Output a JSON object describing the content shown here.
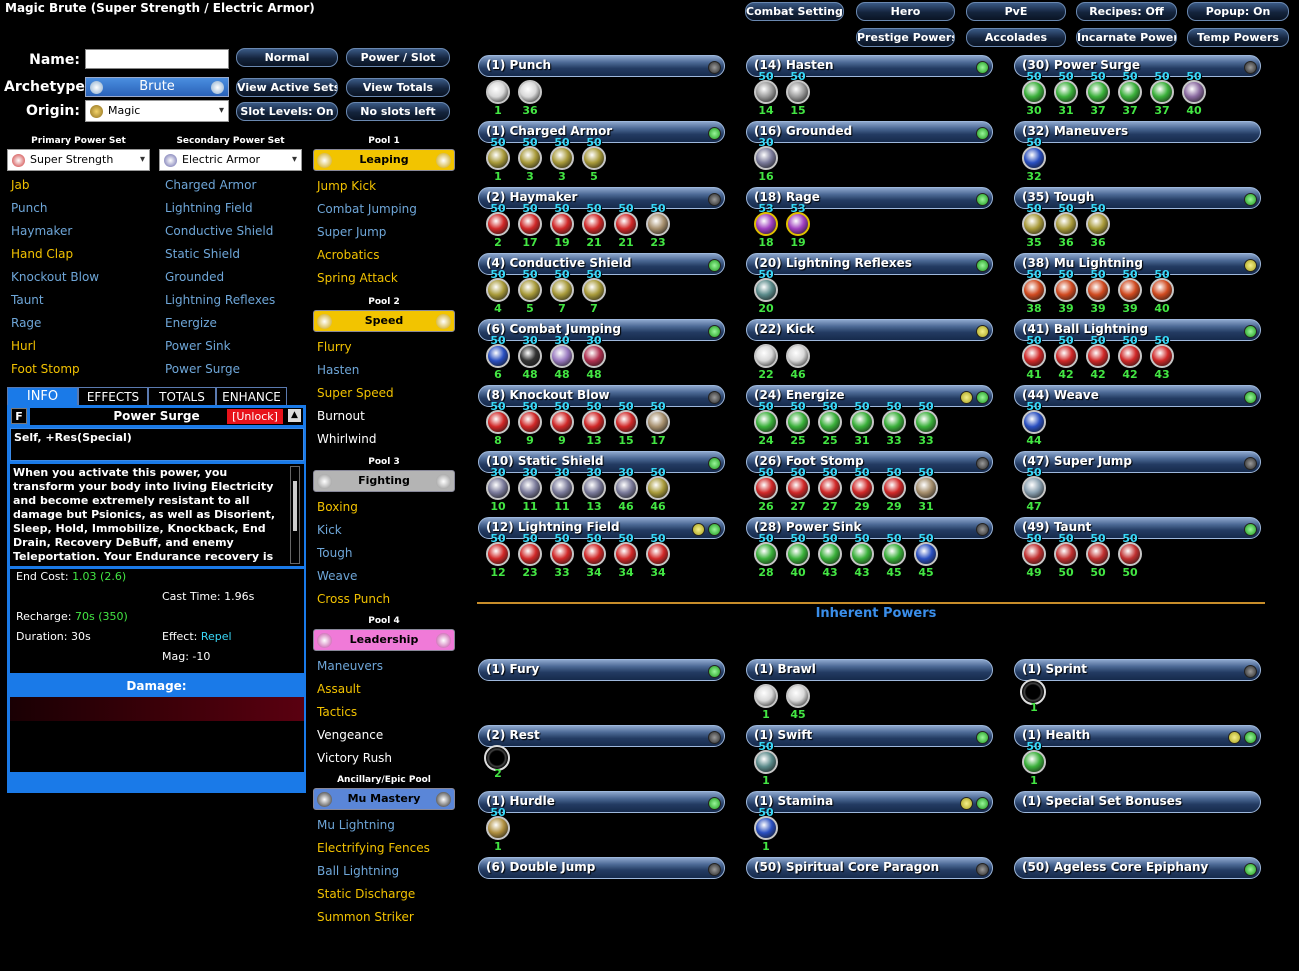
{
  "window_title": "Magic Brute (Super Strength / Electric Armor)",
  "top_buttons": {
    "row1": [
      "Combat Settings",
      "Hero",
      "PvE",
      "Recipes: Off",
      "Popup: On"
    ],
    "row2": [
      "Prestige Powers",
      "Accolades",
      "Incarnate Powers",
      "Temp Powers"
    ]
  },
  "form": {
    "name_label": "Name:",
    "name_value": "",
    "archetype_label": "Archetype:",
    "archetype_value": "Brute",
    "origin_label": "Origin:",
    "origin_value": "Magic"
  },
  "mode_buttons": [
    "Normal",
    "Power / Slot",
    "View Active Sets",
    "View Totals",
    "Slot Levels: On",
    "No slots left"
  ],
  "primary": {
    "label": "Primary Power Set",
    "value": "Super Strength",
    "powers": [
      {
        "n": "Jab",
        "c": "y"
      },
      {
        "n": "Punch",
        "c": "b"
      },
      {
        "n": "Haymaker",
        "c": "b"
      },
      {
        "n": "Hand Clap",
        "c": "y"
      },
      {
        "n": "Knockout Blow",
        "c": "b"
      },
      {
        "n": "Taunt",
        "c": "b"
      },
      {
        "n": "Rage",
        "c": "b"
      },
      {
        "n": "Hurl",
        "c": "y"
      },
      {
        "n": "Foot Stomp",
        "c": "y"
      }
    ]
  },
  "secondary": {
    "label": "Secondary Power Set",
    "value": "Electric Armor",
    "powers": [
      {
        "n": "Charged Armor",
        "c": "b"
      },
      {
        "n": "Lightning Field",
        "c": "b"
      },
      {
        "n": "Conductive Shield",
        "c": "b"
      },
      {
        "n": "Static Shield",
        "c": "b"
      },
      {
        "n": "Grounded",
        "c": "b"
      },
      {
        "n": "Lightning Reflexes",
        "c": "b"
      },
      {
        "n": "Energize",
        "c": "b"
      },
      {
        "n": "Power Sink",
        "c": "b"
      },
      {
        "n": "Power Surge",
        "c": "b"
      }
    ]
  },
  "pools": [
    {
      "label": "Pool 1",
      "name": "Leaping",
      "color": "#f2c400",
      "icon": "#c9a000",
      "powers": [
        {
          "n": "Jump Kick",
          "c": "y"
        },
        {
          "n": "Combat Jumping",
          "c": "b"
        },
        {
          "n": "Super Jump",
          "c": "b"
        },
        {
          "n": "Acrobatics",
          "c": "y"
        },
        {
          "n": "Spring Attack",
          "c": "y"
        }
      ]
    },
    {
      "label": "Pool 2",
      "name": "Speed",
      "color": "#f2c400",
      "icon": "#c9a000",
      "powers": [
        {
          "n": "Flurry",
          "c": "y"
        },
        {
          "n": "Hasten",
          "c": "b"
        },
        {
          "n": "Super Speed",
          "c": "y"
        },
        {
          "n": "Burnout",
          "c": "w"
        },
        {
          "n": "Whirlwind",
          "c": "w"
        }
      ]
    },
    {
      "label": "Pool 3",
      "name": "Fighting",
      "color": "#b4b4b4",
      "icon": "#8a8a8a",
      "powers": [
        {
          "n": "Boxing",
          "c": "y"
        },
        {
          "n": "Kick",
          "c": "b"
        },
        {
          "n": "Tough",
          "c": "b"
        },
        {
          "n": "Weave",
          "c": "b"
        },
        {
          "n": "Cross Punch",
          "c": "y"
        }
      ]
    },
    {
      "label": "Pool 4",
      "name": "Leadership",
      "color": "#f07ad8",
      "icon": "#c040a0",
      "powers": [
        {
          "n": "Maneuvers",
          "c": "b"
        },
        {
          "n": "Assault",
          "c": "y"
        },
        {
          "n": "Tactics",
          "c": "y"
        },
        {
          "n": "Vengeance",
          "c": "w"
        },
        {
          "n": "Victory Rush",
          "c": "w"
        }
      ]
    },
    {
      "label": "Ancillary/Epic Pool",
      "name": "Mu Mastery",
      "color": "#5a86d8",
      "icon": "#222",
      "powers": [
        {
          "n": "Mu Lightning",
          "c": "b"
        },
        {
          "n": "Electrifying Fences",
          "c": "y"
        },
        {
          "n": "Ball Lightning",
          "c": "b"
        },
        {
          "n": "Static Discharge",
          "c": "y"
        },
        {
          "n": "Summon Striker",
          "c": "y"
        }
      ]
    }
  ],
  "info": {
    "tabs": [
      "INFO",
      "EFFECTS",
      "TOTALS",
      "ENHANCE"
    ],
    "flag": "F",
    "power": "Power Surge",
    "unlock": "[Unlock]",
    "summary": "Self, +Res(Special)",
    "desc": "When you activate this power, you transform your body into living Electricity and become extremely resistant to all damage but Psionics, as well as Disorient, Sleep, Hold, Immobilize, Knockback, End Drain, Recovery DeBuff, and enemy Teleportation. Your Endurance recovery is also increased. As Power Surge wears off, the",
    "end_label": "End Cost:",
    "end_val": "1.03 (2.6)",
    "cast_label": "Cast Time:",
    "cast_val": "1.96s",
    "rech_label": "Recharge:",
    "rech_val": "70s (350)",
    "dur_label": "Duration:",
    "dur_val": "30s",
    "eff_label": "Effect:",
    "eff_val": "Repel",
    "mag_label": "Mag:",
    "mag_val": "-10",
    "damage_label": "Damage:"
  },
  "build_slots": [
    {
      "t": "(1) Punch",
      "g": "g",
      "e": [
        {
          "s": "1",
          "c": "#d8d8d8"
        },
        {
          "s": "36",
          "c": "#d8d8d8"
        }
      ]
    },
    {
      "t": "(1) Charged Armor",
      "g": "G",
      "e": [
        {
          "l": "50",
          "s": "1",
          "c": "#a89a3a"
        },
        {
          "l": "50",
          "s": "3",
          "c": "#a89a3a"
        },
        {
          "l": "50",
          "s": "3",
          "c": "#a89a3a"
        },
        {
          "l": "50",
          "s": "5",
          "c": "#a89a3a"
        }
      ]
    },
    {
      "t": "(2) Haymaker",
      "g": "g",
      "e": [
        {
          "l": "50",
          "s": "2",
          "c": "#d02828"
        },
        {
          "l": "50",
          "s": "17",
          "c": "#d02828"
        },
        {
          "l": "50",
          "s": "19",
          "c": "#d02828"
        },
        {
          "l": "50",
          "s": "21",
          "c": "#d02828"
        },
        {
          "l": "50",
          "s": "21",
          "c": "#d02828"
        },
        {
          "l": "50",
          "s": "23",
          "c": "#a58e6c"
        }
      ]
    },
    {
      "t": "(4) Conductive Shield",
      "g": "G",
      "e": [
        {
          "l": "50",
          "s": "4",
          "c": "#a89a3a"
        },
        {
          "l": "50",
          "s": "5",
          "c": "#a89a3a"
        },
        {
          "l": "50",
          "s": "7",
          "c": "#a89a3a"
        },
        {
          "l": "50",
          "s": "7",
          "c": "#a89a3a"
        }
      ]
    },
    {
      "t": "(6) Combat Jumping",
      "g": "G",
      "e": [
        {
          "l": "50",
          "s": "6",
          "c": "#2a4fc0"
        },
        {
          "l": "30",
          "s": "48",
          "c": "#333"
        },
        {
          "l": "30",
          "s": "48",
          "c": "#9a7ac0"
        },
        {
          "l": "30",
          "s": "48",
          "c": "#b03050"
        }
      ]
    },
    {
      "t": "(8) Knockout Blow",
      "g": "g",
      "e": [
        {
          "l": "50",
          "s": "8",
          "c": "#d02828"
        },
        {
          "l": "50",
          "s": "9",
          "c": "#d02828"
        },
        {
          "l": "50",
          "s": "9",
          "c": "#d02828"
        },
        {
          "l": "50",
          "s": "13",
          "c": "#d02828"
        },
        {
          "l": "50",
          "s": "15",
          "c": "#d02828"
        },
        {
          "l": "50",
          "s": "17",
          "c": "#a58e6c"
        }
      ]
    },
    {
      "t": "(10) Static Shield",
      "g": "G",
      "e": [
        {
          "l": "30",
          "s": "10",
          "c": "#7a7a9a"
        },
        {
          "l": "30",
          "s": "11",
          "c": "#7a7a9a"
        },
        {
          "l": "30",
          "s": "11",
          "c": "#7a7a9a"
        },
        {
          "l": "30",
          "s": "13",
          "c": "#7a7a9a"
        },
        {
          "l": "30",
          "s": "46",
          "c": "#7a7a9a"
        },
        {
          "l": "50",
          "s": "46",
          "c": "#a89a3a"
        }
      ]
    },
    {
      "t": "(12) Lightning Field",
      "g": "yG",
      "e": [
        {
          "l": "50",
          "s": "12",
          "c": "#d02828"
        },
        {
          "l": "50",
          "s": "23",
          "c": "#d02828"
        },
        {
          "l": "50",
          "s": "33",
          "c": "#d02828"
        },
        {
          "l": "50",
          "s": "34",
          "c": "#d02828"
        },
        {
          "l": "50",
          "s": "34",
          "c": "#d02828"
        },
        {
          "l": "50",
          "s": "34",
          "c": "#d02828"
        }
      ]
    },
    {
      "t": "(14) Hasten",
      "g": "G",
      "e": [
        {
          "l": "50",
          "s": "14",
          "c": "#9a9a9a"
        },
        {
          "l": "50",
          "s": "15",
          "c": "#9a9a9a"
        }
      ]
    },
    {
      "t": "(16) Grounded",
      "g": "G",
      "e": [
        {
          "l": "30",
          "s": "16",
          "c": "#7a7a9a"
        }
      ]
    },
    {
      "t": "(18) Rage",
      "g": "G",
      "e": [
        {
          "l": "53",
          "s": "18",
          "c": "#a040c0",
          "r": "#e0c000"
        },
        {
          "l": "53",
          "s": "19",
          "c": "#a040c0",
          "r": "#e0c000"
        }
      ]
    },
    {
      "t": "(20) Lightning Reflexes",
      "g": "G",
      "e": [
        {
          "l": "50",
          "s": "20",
          "c": "#5a8a8a"
        }
      ]
    },
    {
      "t": "(22) Kick",
      "g": "y",
      "e": [
        {
          "s": "22",
          "c": "#d8d8d8"
        },
        {
          "s": "46",
          "c": "#d8d8d8"
        }
      ]
    },
    {
      "t": "(24) Energize",
      "g": "yG",
      "e": [
        {
          "l": "50",
          "s": "24",
          "c": "#3ab03a"
        },
        {
          "l": "50",
          "s": "25",
          "c": "#3ab03a"
        },
        {
          "l": "50",
          "s": "25",
          "c": "#3ab03a"
        },
        {
          "l": "50",
          "s": "31",
          "c": "#3ab03a"
        },
        {
          "l": "50",
          "s": "33",
          "c": "#3ab03a"
        },
        {
          "l": "50",
          "s": "33",
          "c": "#3ab03a"
        }
      ]
    },
    {
      "t": "(26) Foot Stomp",
      "g": "g",
      "e": [
        {
          "l": "50",
          "s": "26",
          "c": "#d02828"
        },
        {
          "l": "50",
          "s": "27",
          "c": "#d02828"
        },
        {
          "l": "50",
          "s": "27",
          "c": "#d02828"
        },
        {
          "l": "50",
          "s": "29",
          "c": "#d02828"
        },
        {
          "l": "50",
          "s": "29",
          "c": "#d02828"
        },
        {
          "l": "50",
          "s": "31",
          "c": "#a58e6c"
        }
      ]
    },
    {
      "t": "(28) Power Sink",
      "g": "g",
      "e": [
        {
          "l": "50",
          "s": "28",
          "c": "#3ab03a"
        },
        {
          "l": "50",
          "s": "40",
          "c": "#3ab03a"
        },
        {
          "l": "50",
          "s": "43",
          "c": "#3ab03a"
        },
        {
          "l": "50",
          "s": "43",
          "c": "#3ab03a"
        },
        {
          "l": "50",
          "s": "45",
          "c": "#3ab03a"
        },
        {
          "l": "50",
          "s": "45",
          "c": "#2a4fc0"
        }
      ]
    },
    {
      "t": "(30) Power Surge",
      "g": "g",
      "e": [
        {
          "l": "50",
          "s": "30",
          "c": "#3ab03a"
        },
        {
          "l": "50",
          "s": "31",
          "c": "#3ab03a"
        },
        {
          "l": "50",
          "s": "37",
          "c": "#3ab03a"
        },
        {
          "l": "50",
          "s": "37",
          "c": "#3ab03a"
        },
        {
          "l": "50",
          "s": "37",
          "c": "#3ab03a"
        },
        {
          "l": "50",
          "s": "40",
          "c": "#8a6aa0"
        }
      ]
    },
    {
      "t": "(32) Maneuvers",
      "g": "",
      "e": [
        {
          "l": "50",
          "s": "32",
          "c": "#2a4fc0"
        }
      ]
    },
    {
      "t": "(35) Tough",
      "g": "G",
      "e": [
        {
          "l": "50",
          "s": "35",
          "c": "#a89a3a"
        },
        {
          "l": "50",
          "s": "36",
          "c": "#a89a3a"
        },
        {
          "l": "50",
          "s": "36",
          "c": "#a89a3a"
        }
      ]
    },
    {
      "t": "(38) Mu Lightning",
      "g": "y",
      "e": [
        {
          "l": "50",
          "s": "38",
          "c": "#d04a20"
        },
        {
          "l": "50",
          "s": "39",
          "c": "#d04a20"
        },
        {
          "l": "50",
          "s": "39",
          "c": "#d04a20"
        },
        {
          "l": "50",
          "s": "39",
          "c": "#d04a20"
        },
        {
          "l": "50",
          "s": "40",
          "c": "#d04a20"
        }
      ]
    },
    {
      "t": "(41) Ball Lightning",
      "g": "G",
      "e": [
        {
          "l": "50",
          "s": "41",
          "c": "#d02828"
        },
        {
          "l": "50",
          "s": "42",
          "c": "#d02828"
        },
        {
          "l": "50",
          "s": "42",
          "c": "#d02828"
        },
        {
          "l": "50",
          "s": "42",
          "c": "#d02828"
        },
        {
          "l": "50",
          "s": "43",
          "c": "#d02828"
        }
      ]
    },
    {
      "t": "(44) Weave",
      "g": "G",
      "e": [
        {
          "l": "50",
          "s": "44",
          "c": "#2a4fc0"
        }
      ]
    },
    {
      "t": "(47) Super Jump",
      "g": "g",
      "e": [
        {
          "l": "50",
          "s": "47",
          "c": "#8aa0b0"
        }
      ]
    },
    {
      "t": "(49) Taunt",
      "g": "G",
      "e": [
        {
          "l": "50",
          "s": "49",
          "c": "#c03030"
        },
        {
          "l": "50",
          "s": "50",
          "c": "#c03030"
        },
        {
          "l": "50",
          "s": "50",
          "c": "#c03030"
        },
        {
          "l": "50",
          "s": "50",
          "c": "#c03030"
        }
      ]
    }
  ],
  "inherent_title": "Inherent Powers",
  "inherent_slots": [
    {
      "t": "(1) Fury",
      "g": "G",
      "e": []
    },
    {
      "t": "(2) Rest",
      "g": "g",
      "e": [
        {
          "s": "2",
          "ring": true
        }
      ]
    },
    {
      "t": "(1) Hurdle",
      "g": "G",
      "e": [
        {
          "l": "50",
          "s": "1",
          "c": "#b09040"
        }
      ]
    },
    {
      "t": "(6) Double Jump",
      "g": "g",
      "e": []
    },
    {
      "t": "(1) Brawl",
      "g": "",
      "e": [
        {
          "s": "1",
          "c": "#d8d8d8"
        },
        {
          "s": "45",
          "c": "#d8d8d8"
        }
      ]
    },
    {
      "t": "(1) Swift",
      "g": "G",
      "e": [
        {
          "l": "50",
          "s": "1",
          "c": "#5a8a8a"
        }
      ]
    },
    {
      "t": "(1) Stamina",
      "g": "yG",
      "e": [
        {
          "l": "50",
          "s": "1",
          "c": "#2a4fc0"
        }
      ]
    },
    {
      "t": "(50) Spiritual Core Paragon",
      "g": "g",
      "e": []
    },
    {
      "t": "(1) Sprint",
      "g": "g",
      "e": [
        {
          "s": "1",
          "ring": true
        }
      ]
    },
    {
      "t": "(1) Health",
      "g": "yG",
      "e": [
        {
          "l": "50",
          "s": "1",
          "c": "#3ab03a"
        }
      ]
    },
    {
      "t": "(1) Special Set Bonuses",
      "g": "",
      "e": []
    },
    {
      "t": "(50) Ageless Core Epiphany",
      "g": "G",
      "e": []
    }
  ]
}
